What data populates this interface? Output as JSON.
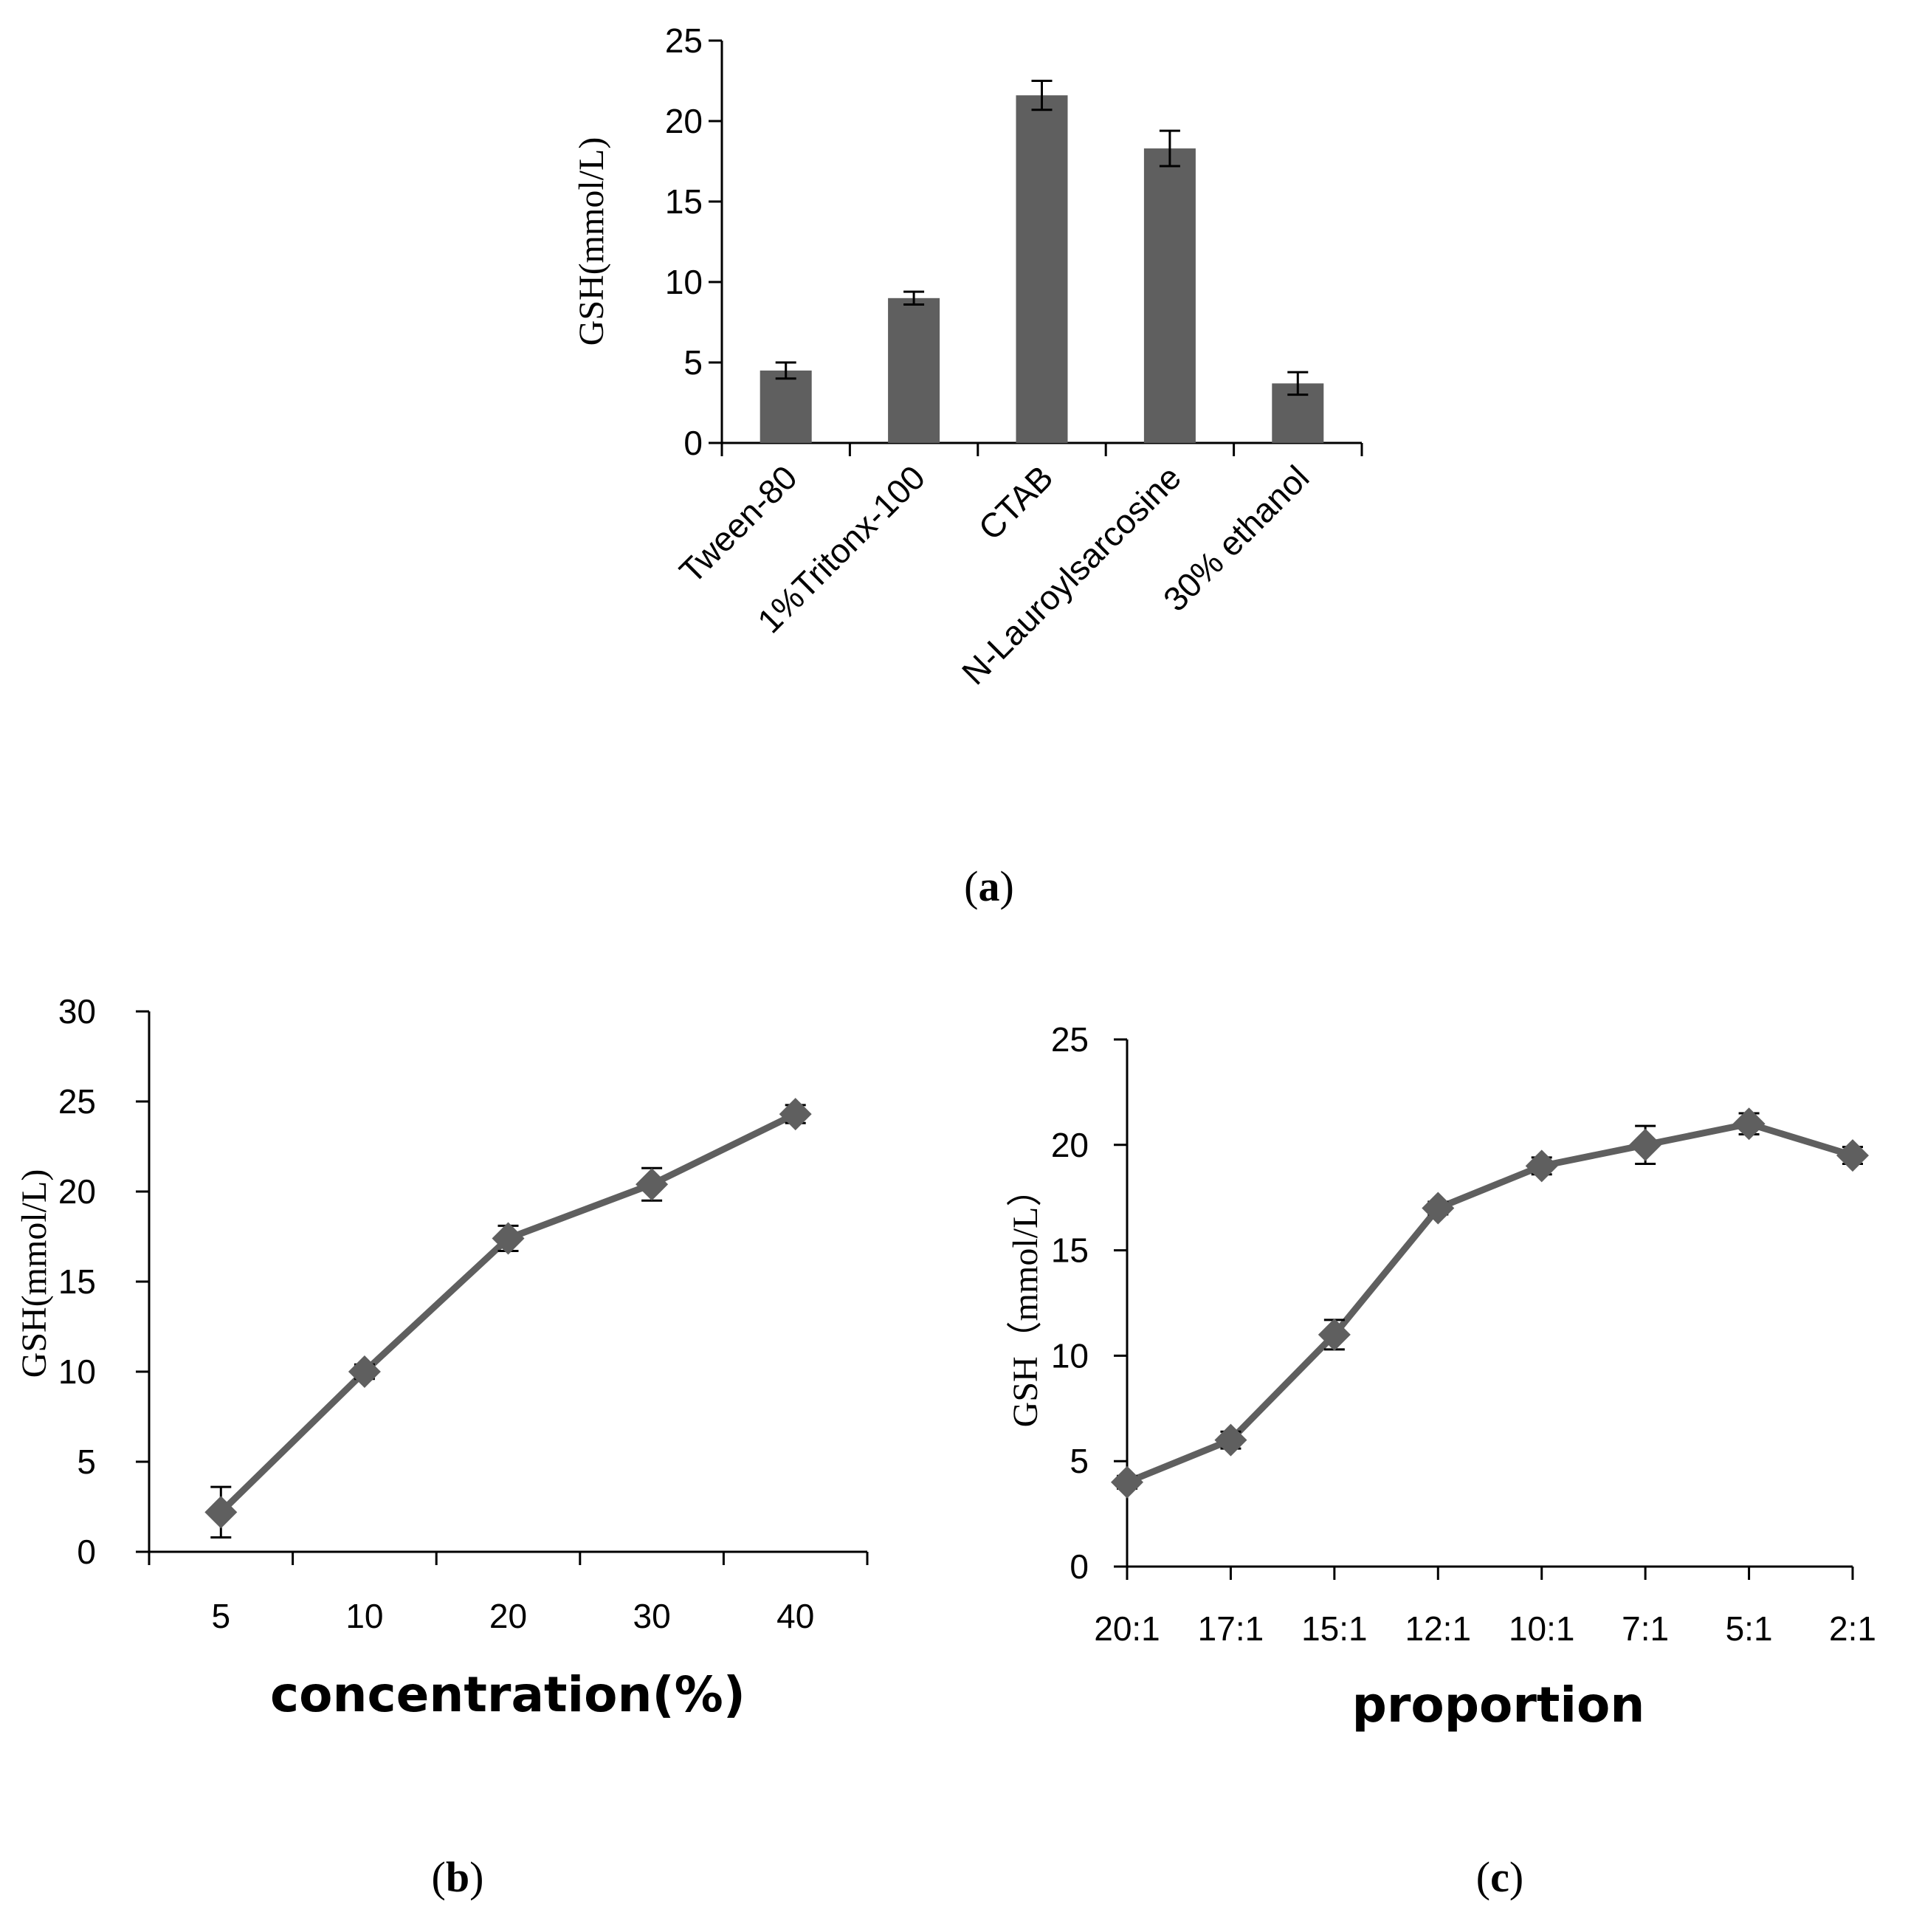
{
  "chart_data": [
    {
      "panel_label": "a",
      "type": "bar",
      "ylabel": "GSH(mmol/L)",
      "xlabel": "",
      "ylim": [
        0,
        25
      ],
      "yticks": [
        "0",
        "5",
        "10",
        "15",
        "20",
        "25"
      ],
      "categories": [
        "Tween-80",
        "1%Tritonx-100",
        "CTAB",
        "N-Lauroylsarcosine",
        "30% ethanol"
      ],
      "values": [
        4.5,
        9.0,
        21.6,
        18.3,
        3.7
      ],
      "errors": [
        0.5,
        0.4,
        0.9,
        1.1,
        0.7
      ],
      "bar_color": "#5f5f5f",
      "grid": false
    },
    {
      "panel_label": "b",
      "type": "line",
      "ylabel": "GSH(mmol/L)",
      "xlabel": "concentration(%)",
      "ylim": [
        0,
        30
      ],
      "yticks": [
        "0",
        "5",
        "10",
        "15",
        "20",
        "25",
        "30"
      ],
      "categories": [
        "5",
        "10",
        "20",
        "30",
        "40"
      ],
      "values": [
        2.2,
        10.0,
        17.4,
        20.4,
        24.3
      ],
      "errors": [
        1.4,
        0.4,
        0.7,
        0.9,
        0.5
      ],
      "line_color": "#5f5f5f",
      "marker": "diamond",
      "grid": false
    },
    {
      "panel_label": "c",
      "type": "line",
      "ylabel": "GSH（mmol/L）",
      "xlabel": "proportion",
      "ylim": [
        0,
        25
      ],
      "yticks": [
        "0",
        "5",
        "10",
        "15",
        "20",
        "25"
      ],
      "categories": [
        "20:1",
        "17:1",
        "15:1",
        "12:1",
        "10:1",
        "7:1",
        "5:1",
        "2:1"
      ],
      "values": [
        4.0,
        6.0,
        11.0,
        17.0,
        19.0,
        20.0,
        21.0,
        19.5
      ],
      "errors": [
        0.3,
        0.4,
        0.7,
        0.3,
        0.4,
        0.9,
        0.5,
        0.4
      ],
      "line_color": "#5f5f5f",
      "marker": "diamond",
      "grid": false
    }
  ]
}
